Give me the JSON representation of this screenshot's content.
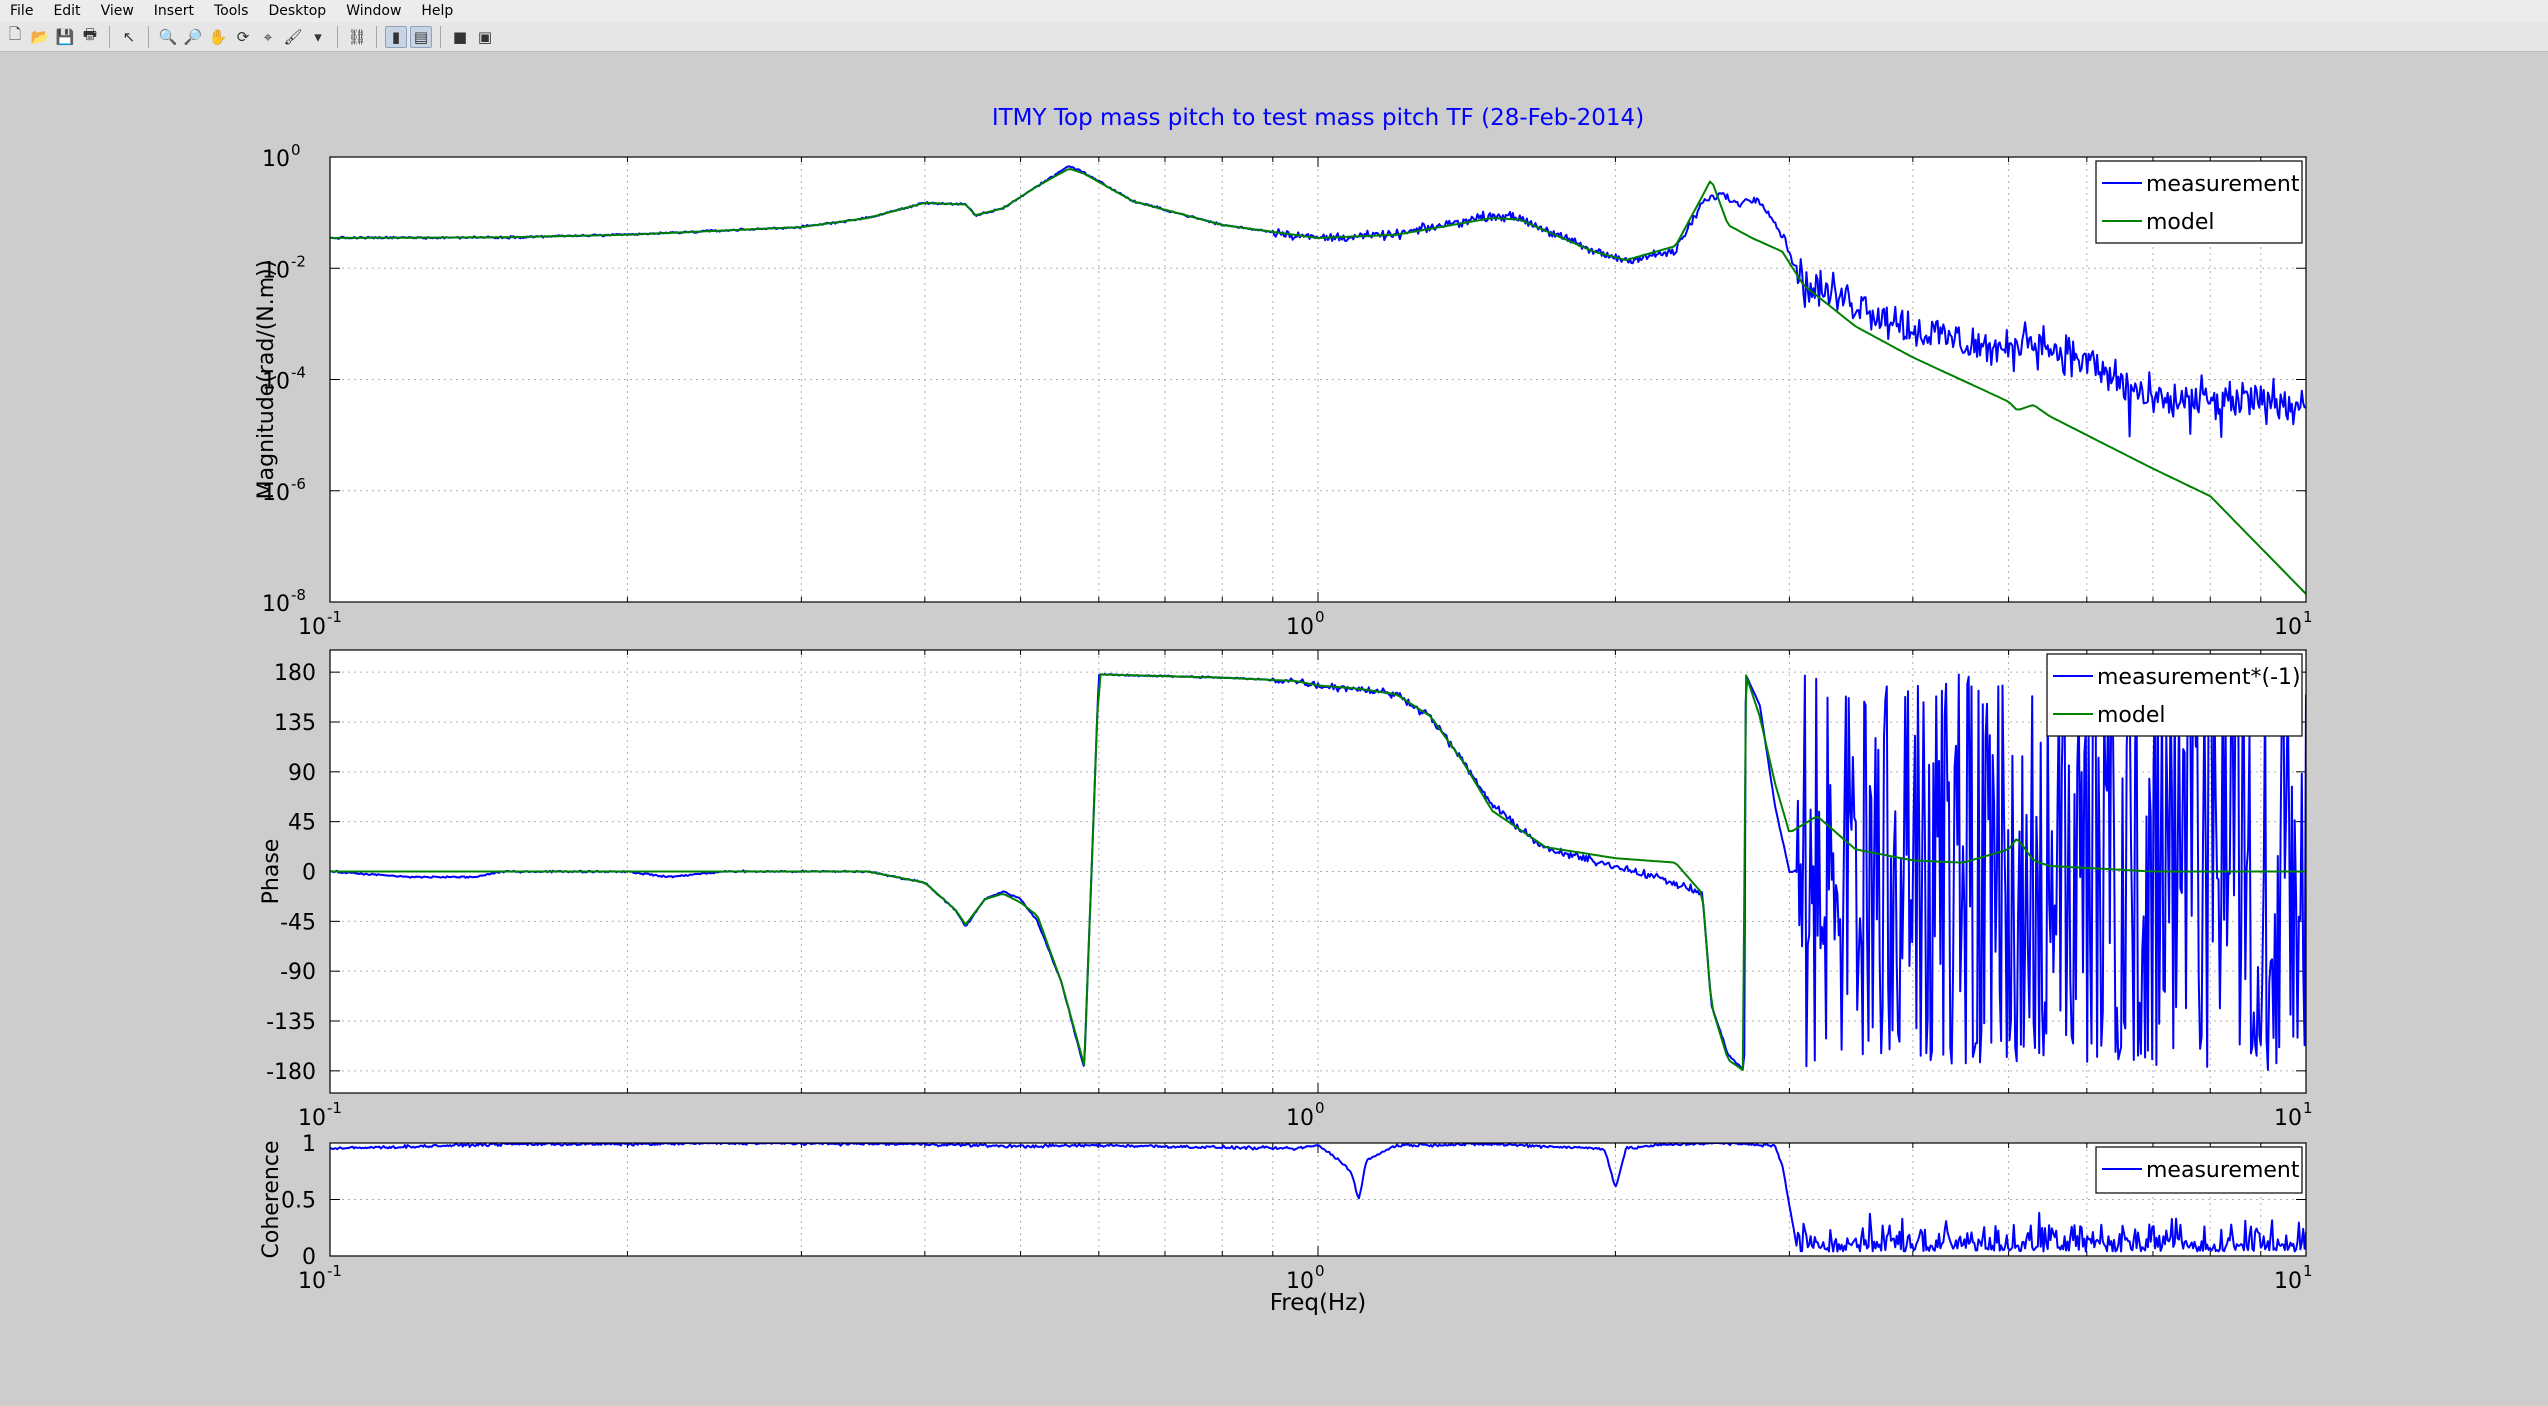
{
  "menu": [
    "File",
    "Edit",
    "View",
    "Insert",
    "Tools",
    "Desktop",
    "Window",
    "Help"
  ],
  "toolbar": [
    {
      "name": "new-figure-icon",
      "glyph": "🗋",
      "group": 0
    },
    {
      "name": "open-file-icon",
      "glyph": "📂",
      "group": 0
    },
    {
      "name": "save-icon",
      "glyph": "💾",
      "group": 0
    },
    {
      "name": "print-icon",
      "glyph": "🖶",
      "group": 0
    },
    {
      "name": "edit-plot-pointer-icon",
      "glyph": "↖",
      "group": 1
    },
    {
      "name": "zoom-in-icon",
      "glyph": "🔍",
      "group": 2
    },
    {
      "name": "zoom-out-icon",
      "glyph": "🔎",
      "group": 2
    },
    {
      "name": "pan-hand-icon",
      "glyph": "✋",
      "group": 2
    },
    {
      "name": "rotate-3d-icon",
      "glyph": "⟳",
      "group": 2
    },
    {
      "name": "data-cursor-icon",
      "glyph": "⌖",
      "group": 2
    },
    {
      "name": "brush-icon",
      "glyph": "🖌",
      "group": 2
    },
    {
      "name": "brush-dropdown-icon",
      "glyph": "▾",
      "group": 2
    },
    {
      "name": "link-plot-icon",
      "glyph": "⛓",
      "group": 3
    },
    {
      "name": "colorbar-icon",
      "glyph": "▮",
      "group": 4,
      "active": true
    },
    {
      "name": "legend-icon",
      "glyph": "▤",
      "group": 4,
      "active": true
    },
    {
      "name": "hide-plot-tools-icon",
      "glyph": "■",
      "group": 5
    },
    {
      "name": "show-plot-tools-icon",
      "glyph": "▣",
      "group": 5
    }
  ],
  "colors": {
    "measurement": "#0000ff",
    "model": "#008000",
    "title": "#0000ff",
    "background": "#cdcdcd",
    "axes_bg": "#ffffff"
  },
  "figure_title": "ITMY Top mass pitch to test mass pitch TF (28-Feb-2014)",
  "chart_data": [
    {
      "type": "line",
      "xscale": "log",
      "yscale": "log",
      "xlim": [
        0.1,
        10
      ],
      "ylim": [
        1e-08,
        1
      ],
      "ylabel": "Magnitude(rad/(N.m))",
      "xticks": [
        {
          "base": "10",
          "exp": "-1"
        },
        {
          "base": "10",
          "exp": "0"
        },
        {
          "base": "10",
          "exp": "1"
        }
      ],
      "yticks": [
        {
          "base": "10",
          "exp": "0"
        },
        {
          "base": "10",
          "exp": "-2"
        },
        {
          "base": "10",
          "exp": "-4"
        },
        {
          "base": "10",
          "exp": "-6"
        },
        {
          "base": "10",
          "exp": "-8"
        }
      ],
      "grid": true,
      "legend_position": "top-right",
      "series": [
        {
          "name": "measurement",
          "noise": true,
          "points": [
            [
              0.1,
              0.035
            ],
            [
              0.15,
              0.036
            ],
            [
              0.2,
              0.04
            ],
            [
              0.3,
              0.055
            ],
            [
              0.35,
              0.08
            ],
            [
              0.4,
              0.15
            ],
            [
              0.44,
              0.14
            ],
            [
              0.45,
              0.088
            ],
            [
              0.48,
              0.12
            ],
            [
              0.52,
              0.3
            ],
            [
              0.56,
              0.7
            ],
            [
              0.58,
              0.52
            ],
            [
              0.65,
              0.16
            ],
            [
              0.8,
              0.06
            ],
            [
              1.0,
              0.035
            ],
            [
              1.2,
              0.04
            ],
            [
              1.5,
              0.09
            ],
            [
              1.6,
              0.08
            ],
            [
              1.9,
              0.02
            ],
            [
              2.05,
              0.014
            ],
            [
              2.3,
              0.02
            ],
            [
              2.45,
              0.15
            ],
            [
              2.55,
              0.22
            ],
            [
              2.65,
              0.15
            ],
            [
              2.8,
              0.18
            ],
            [
              2.95,
              0.04
            ],
            [
              3.1,
              0.005
            ],
            [
              3.5,
              0.0025
            ],
            [
              4,
              0.0008
            ],
            [
              5,
              0.0003
            ],
            [
              5.2,
              0.0006
            ],
            [
              6,
              0.0002
            ],
            [
              7,
              4e-05
            ],
            [
              8,
              4e-05
            ],
            [
              10,
              4e-05
            ]
          ]
        },
        {
          "name": "model",
          "noise": false,
          "points": [
            [
              0.1,
              0.035
            ],
            [
              0.15,
              0.036
            ],
            [
              0.2,
              0.04
            ],
            [
              0.3,
              0.055
            ],
            [
              0.35,
              0.08
            ],
            [
              0.4,
              0.15
            ],
            [
              0.44,
              0.14
            ],
            [
              0.45,
              0.09
            ],
            [
              0.48,
              0.12
            ],
            [
              0.52,
              0.3
            ],
            [
              0.56,
              0.62
            ],
            [
              0.58,
              0.5
            ],
            [
              0.65,
              0.16
            ],
            [
              0.8,
              0.06
            ],
            [
              1.0,
              0.035
            ],
            [
              1.2,
              0.04
            ],
            [
              1.5,
              0.08
            ],
            [
              1.6,
              0.075
            ],
            [
              1.9,
              0.02
            ],
            [
              2.05,
              0.014
            ],
            [
              2.3,
              0.025
            ],
            [
              2.45,
              0.2
            ],
            [
              2.5,
              0.4
            ],
            [
              2.6,
              0.06
            ],
            [
              2.75,
              0.035
            ],
            [
              2.95,
              0.02
            ],
            [
              3.1,
              0.005
            ],
            [
              3.5,
              0.0009
            ],
            [
              4,
              0.00025
            ],
            [
              5,
              4e-05
            ],
            [
              5.1,
              2.8e-05
            ],
            [
              5.3,
              3.5e-05
            ],
            [
              5.5,
              2.2e-05
            ],
            [
              6,
              1e-05
            ],
            [
              7,
              2.5e-06
            ],
            [
              8,
              8e-07
            ],
            [
              10,
              1.4e-08
            ]
          ]
        }
      ]
    },
    {
      "type": "line",
      "xscale": "log",
      "yscale": "linear",
      "xlim": [
        0.1,
        10
      ],
      "ylim": [
        -200,
        200
      ],
      "ylabel": "Phase",
      "xticks": [
        {
          "base": "10",
          "exp": "-1"
        },
        {
          "base": "10",
          "exp": "0"
        },
        {
          "base": "10",
          "exp": "1"
        }
      ],
      "yticks": [
        180,
        135,
        90,
        45,
        0,
        -45,
        -90,
        -135,
        -180
      ],
      "grid": true,
      "legend_position": "top-right",
      "series": [
        {
          "name": "measurement*(-1)",
          "noise": true,
          "wild_from": 3.05,
          "points": [
            [
              0.1,
              0
            ],
            [
              0.12,
              -5
            ],
            [
              0.14,
              -5
            ],
            [
              0.15,
              0
            ],
            [
              0.2,
              0
            ],
            [
              0.22,
              -5
            ],
            [
              0.25,
              0
            ],
            [
              0.35,
              0
            ],
            [
              0.4,
              -10
            ],
            [
              0.43,
              -35
            ],
            [
              0.44,
              -50
            ],
            [
              0.46,
              -25
            ],
            [
              0.48,
              -18
            ],
            [
              0.5,
              -25
            ],
            [
              0.52,
              -45
            ],
            [
              0.55,
              -100
            ],
            [
              0.58,
              -178
            ],
            [
              0.6,
              178
            ],
            [
              0.8,
              175
            ],
            [
              0.95,
              172
            ],
            [
              1.0,
              168
            ],
            [
              1.1,
              165
            ],
            [
              1.2,
              160
            ],
            [
              1.3,
              140
            ],
            [
              1.4,
              100
            ],
            [
              1.5,
              60
            ],
            [
              1.7,
              20
            ],
            [
              2.0,
              5
            ],
            [
              2.2,
              -5
            ],
            [
              2.45,
              -20
            ],
            [
              2.5,
              -120
            ],
            [
              2.6,
              -165
            ],
            [
              2.7,
              -180
            ],
            [
              2.71,
              178
            ],
            [
              2.8,
              150
            ],
            [
              2.9,
              60
            ],
            [
              3.0,
              0
            ]
          ]
        },
        {
          "name": "model",
          "noise": false,
          "points": [
            [
              0.1,
              0
            ],
            [
              0.35,
              0
            ],
            [
              0.4,
              -10
            ],
            [
              0.43,
              -35
            ],
            [
              0.44,
              -48
            ],
            [
              0.46,
              -25
            ],
            [
              0.48,
              -20
            ],
            [
              0.5,
              -28
            ],
            [
              0.52,
              -40
            ],
            [
              0.55,
              -100
            ],
            [
              0.58,
              -175
            ],
            [
              0.6,
              178
            ],
            [
              0.8,
              175
            ],
            [
              0.95,
              172
            ],
            [
              1.0,
              168
            ],
            [
              1.1,
              165
            ],
            [
              1.2,
              160
            ],
            [
              1.3,
              140
            ],
            [
              1.4,
              100
            ],
            [
              1.5,
              55
            ],
            [
              1.7,
              22
            ],
            [
              2.0,
              12
            ],
            [
              2.3,
              8
            ],
            [
              2.45,
              -20
            ],
            [
              2.5,
              -120
            ],
            [
              2.6,
              -170
            ],
            [
              2.7,
              -180
            ],
            [
              2.71,
              178
            ],
            [
              2.8,
              140
            ],
            [
              2.9,
              80
            ],
            [
              3.0,
              35
            ],
            [
              3.2,
              50
            ],
            [
              3.5,
              20
            ],
            [
              4.0,
              10
            ],
            [
              4.5,
              8
            ],
            [
              5.0,
              20
            ],
            [
              5.1,
              30
            ],
            [
              5.3,
              10
            ],
            [
              5.5,
              5
            ],
            [
              7,
              0
            ],
            [
              10,
              0
            ]
          ]
        }
      ]
    },
    {
      "type": "line",
      "xscale": "log",
      "yscale": "linear",
      "xlim": [
        0.1,
        10
      ],
      "ylim": [
        0,
        1
      ],
      "ylabel": "Coherence",
      "xlabel": "Freq(Hz)",
      "xticks": [
        {
          "base": "10",
          "exp": "-1"
        },
        {
          "base": "10",
          "exp": "0"
        },
        {
          "base": "10",
          "exp": "1"
        }
      ],
      "yticks": [
        "1",
        "0.5",
        "0"
      ],
      "grid": true,
      "legend_position": "top-right",
      "series": [
        {
          "name": "measurement",
          "noise": true,
          "points": [
            [
              0.1,
              0.95
            ],
            [
              0.15,
              0.99
            ],
            [
              0.2,
              0.99
            ],
            [
              0.25,
              1.0
            ],
            [
              0.4,
              0.99
            ],
            [
              0.5,
              0.97
            ],
            [
              0.6,
              0.98
            ],
            [
              0.95,
              0.95
            ],
            [
              1.0,
              0.98
            ],
            [
              1.05,
              0.85
            ],
            [
              1.08,
              0.75
            ],
            [
              1.1,
              0.5
            ],
            [
              1.12,
              0.85
            ],
            [
              1.2,
              0.98
            ],
            [
              1.5,
              0.99
            ],
            [
              1.95,
              0.95
            ],
            [
              2.0,
              0.6
            ],
            [
              2.05,
              0.95
            ],
            [
              2.2,
              0.98
            ],
            [
              2.5,
              1.0
            ],
            [
              2.9,
              0.98
            ],
            [
              2.95,
              0.8
            ],
            [
              3.0,
              0.45
            ],
            [
              3.05,
              0.1
            ],
            [
              3.2,
              0.15
            ],
            [
              4.0,
              0.15
            ],
            [
              5.0,
              0.12
            ],
            [
              7.0,
              0.12
            ],
            [
              10,
              0.12
            ]
          ]
        }
      ]
    }
  ]
}
